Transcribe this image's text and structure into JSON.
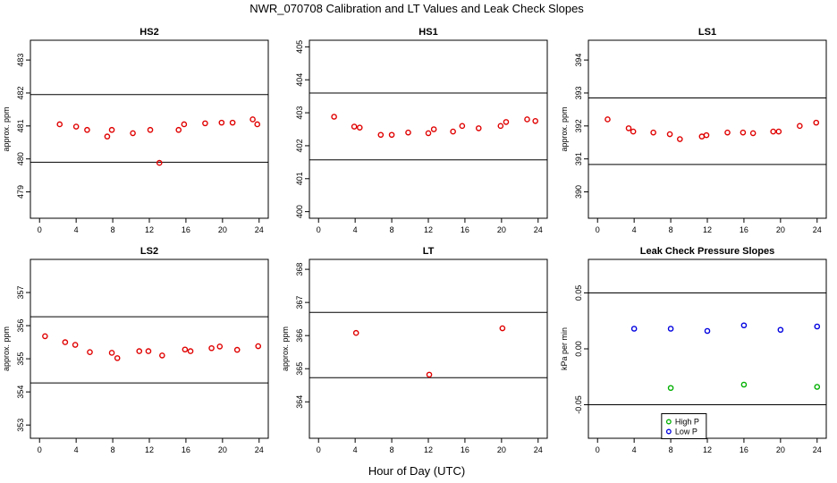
{
  "figure": {
    "title": "NWR_070708  Calibration and LT Values and Leak Check Slopes",
    "xlabel": "Hour of Day (UTC)"
  },
  "chart_data": [
    {
      "type": "scatter",
      "title": "HS2",
      "ylabel": "approx. ppm",
      "xlim": [
        -1,
        25
      ],
      "ylim": [
        478.2,
        483.6
      ],
      "xticks": [
        "0",
        "4",
        "8",
        "12",
        "16",
        "20",
        "24"
      ],
      "yticks": [
        "479",
        "480",
        "481",
        "482",
        "483"
      ],
      "hlines": [
        481.95,
        479.9
      ],
      "series": [
        {
          "color": "#e00000",
          "x": [
            2.2,
            4.0,
            5.2,
            7.4,
            7.9,
            10.2,
            12.1,
            13.1,
            15.2,
            15.8,
            18.1,
            19.9,
            21.1,
            23.3,
            23.8
          ],
          "y": [
            481.05,
            480.98,
            480.88,
            480.68,
            480.88,
            480.78,
            480.88,
            479.88,
            480.88,
            481.05,
            481.08,
            481.1,
            481.1,
            481.2,
            481.05
          ]
        }
      ]
    },
    {
      "type": "scatter",
      "title": "HS1",
      "ylabel": "",
      "xlim": [
        -1,
        25
      ],
      "ylim": [
        399.8,
        405.2
      ],
      "xticks": [
        "0",
        "4",
        "8",
        "12",
        "16",
        "20",
        "24"
      ],
      "yticks": [
        "400",
        "401",
        "402",
        "403",
        "404",
        "405"
      ],
      "hlines": [
        403.6,
        401.57
      ],
      "series": [
        {
          "color": "#e00000",
          "x": [
            1.7,
            3.9,
            4.5,
            6.8,
            8.0,
            9.8,
            12.0,
            12.6,
            14.7,
            15.7,
            17.5,
            19.9,
            20.5,
            22.8,
            23.7
          ],
          "y": [
            402.88,
            402.58,
            402.55,
            402.33,
            402.33,
            402.4,
            402.38,
            402.5,
            402.43,
            402.6,
            402.53,
            402.6,
            402.72,
            402.8,
            402.75
          ]
        }
      ]
    },
    {
      "type": "scatter",
      "title": "LS1",
      "ylabel": "approx. ppm",
      "xlim": [
        -1,
        25
      ],
      "ylim": [
        389.2,
        394.6
      ],
      "xticks": [
        "0",
        "4",
        "8",
        "12",
        "16",
        "20",
        "24"
      ],
      "yticks": [
        "390",
        "391",
        "392",
        "393",
        "394"
      ],
      "hlines": [
        392.85,
        390.83
      ],
      "series": [
        {
          "color": "#e00000",
          "x": [
            1.1,
            3.4,
            3.9,
            6.1,
            7.9,
            9.0,
            11.4,
            11.9,
            14.2,
            15.9,
            17.0,
            19.2,
            19.8,
            22.1,
            23.9
          ],
          "y": [
            392.2,
            391.93,
            391.83,
            391.8,
            391.75,
            391.6,
            391.68,
            391.72,
            391.8,
            391.8,
            391.78,
            391.83,
            391.83,
            392.0,
            392.1
          ]
        }
      ]
    },
    {
      "type": "scatter",
      "title": "LS2",
      "ylabel": "approx. ppm",
      "xlim": [
        -1,
        25
      ],
      "ylim": [
        352.6,
        358.0
      ],
      "xticks": [
        "0",
        "4",
        "8",
        "12",
        "16",
        "20",
        "24"
      ],
      "yticks": [
        "353",
        "354",
        "355",
        "356",
        "357"
      ],
      "hlines": [
        356.27,
        354.27
      ],
      "series": [
        {
          "color": "#e00000",
          "x": [
            0.6,
            2.8,
            3.9,
            5.5,
            7.9,
            8.5,
            10.9,
            11.9,
            13.4,
            15.9,
            16.5,
            18.8,
            19.7,
            21.6,
            23.9
          ],
          "y": [
            355.68,
            355.5,
            355.42,
            355.2,
            355.18,
            355.02,
            355.23,
            355.23,
            355.1,
            355.28,
            355.23,
            355.32,
            355.37,
            355.27,
            355.38
          ]
        }
      ]
    },
    {
      "type": "scatter",
      "title": "LT",
      "ylabel": "approx. ppm",
      "xlim": [
        -1,
        25
      ],
      "ylim": [
        362.9,
        368.3
      ],
      "xticks": [
        "0",
        "4",
        "8",
        "12",
        "16",
        "20",
        "24"
      ],
      "yticks": [
        "364",
        "365",
        "366",
        "367",
        "368"
      ],
      "hlines": [
        366.7,
        364.73
      ],
      "series": [
        {
          "color": "#e00000",
          "x": [
            4.1,
            12.1,
            20.1
          ],
          "y": [
            366.08,
            364.82,
            366.22
          ]
        }
      ]
    },
    {
      "type": "scatter",
      "title": "Leak Check Pressure Slopes",
      "ylabel": "kPa per min",
      "xlim": [
        -1,
        25
      ],
      "ylim": [
        -0.08,
        0.08
      ],
      "xticks": [
        "0",
        "4",
        "8",
        "12",
        "16",
        "20",
        "24"
      ],
      "yticks": [
        "-0.05",
        "0.00",
        "0.05"
      ],
      "hlines": [
        0.05,
        -0.05
      ],
      "series": [
        {
          "name": "High P",
          "color": "#00b000",
          "x": [
            8.0,
            16.0,
            24.0
          ],
          "y": [
            -0.035,
            -0.032,
            -0.034
          ]
        },
        {
          "name": "Low P",
          "color": "#0000e0",
          "x": [
            4.0,
            8.0,
            12.0,
            16.0,
            20.0,
            24.0
          ],
          "y": [
            0.018,
            0.018,
            0.016,
            0.021,
            0.017,
            0.02
          ]
        }
      ],
      "legend": {
        "position": "bottom-center"
      }
    }
  ]
}
